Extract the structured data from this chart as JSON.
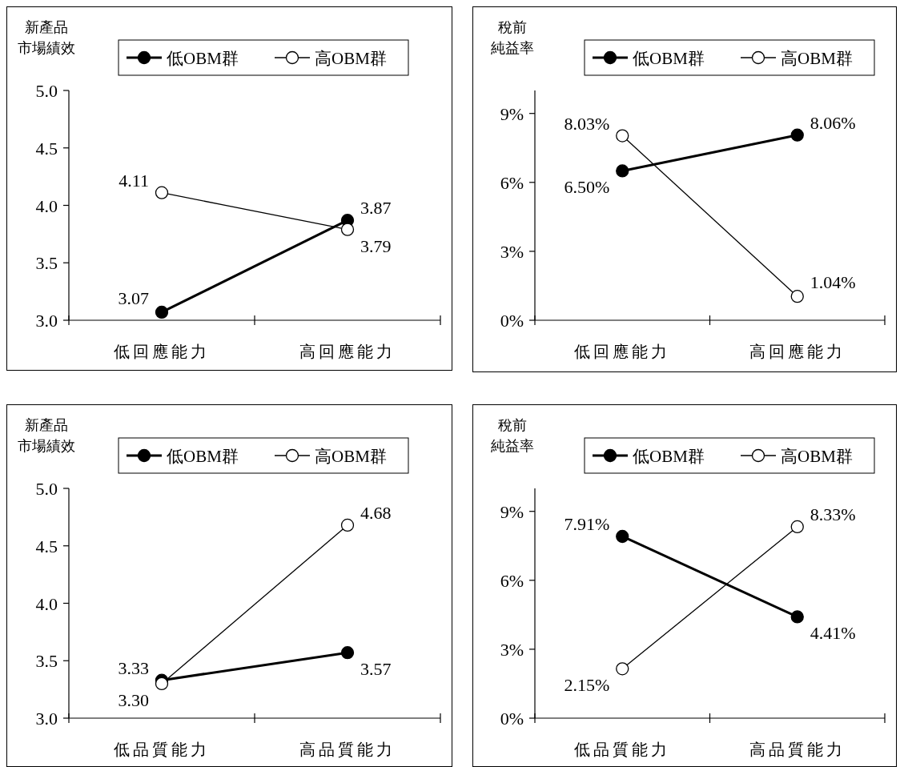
{
  "chart_data": [
    {
      "type": "line",
      "ylabel": "新產品市場績效",
      "categories": [
        "低回應能力",
        "高回應能力"
      ],
      "legend": "top",
      "marker": "circle",
      "data_labels": true,
      "ylim": [
        3,
        5
      ],
      "yticks": [
        {
          "value": 3,
          "label": "3.0"
        },
        {
          "value": 3.5,
          "label": "3.5"
        },
        {
          "value": 4,
          "label": "4.0"
        },
        {
          "value": 4.5,
          "label": "4.5"
        },
        {
          "value": 5,
          "label": "5.0"
        }
      ],
      "series": [
        {
          "name": "低OBM群",
          "color": "#000000",
          "values": [
            3.07,
            3.87
          ]
        },
        {
          "name": "高OBM群",
          "color": "#ffffff",
          "values": [
            4.11,
            3.79
          ]
        }
      ]
    },
    {
      "type": "line",
      "ylabel": "稅前純益率",
      "categories": [
        "低回應能力",
        "高回應能力"
      ],
      "legend": "top",
      "marker": "circle",
      "ylim": [
        0,
        10
      ],
      "yticks": [
        {
          "value": 0,
          "label": "0%"
        },
        {
          "value": 3,
          "label": "3%"
        },
        {
          "value": 6,
          "label": "6%"
        },
        {
          "value": 9,
          "label": "9%"
        }
      ],
      "series": [
        {
          "name": "低OBM群",
          "color": "#000000",
          "values": [
            6.5,
            8.06
          ],
          "value_labels": [
            "6.50%",
            "8.06%"
          ]
        },
        {
          "name": "高OBM群",
          "color": "#ffffff",
          "values": [
            8.03,
            1.04
          ],
          "value_labels": [
            "8.03%",
            "1.04%"
          ]
        }
      ]
    },
    {
      "type": "line",
      "ylabel": "新產品市場績效",
      "categories": [
        "低品質能力",
        "高品質能力"
      ],
      "legend": "top",
      "marker": "circle",
      "ylim": [
        3,
        5
      ],
      "yticks": [
        {
          "value": 3,
          "label": "3.0"
        },
        {
          "value": 3.5,
          "label": "3.5"
        },
        {
          "value": 4,
          "label": "4.0"
        },
        {
          "value": 4.5,
          "label": "4.5"
        },
        {
          "value": 5,
          "label": "5.0"
        }
      ],
      "series": [
        {
          "name": "低OBM群",
          "color": "#000000",
          "values": [
            3.33,
            3.57
          ],
          "value_labels": [
            "3.33",
            "3.57"
          ]
        },
        {
          "name": "高OBM群",
          "color": "#ffffff",
          "values": [
            3.3,
            4.68
          ],
          "value_labels": [
            "3.30",
            "4.68"
          ]
        }
      ]
    },
    {
      "type": "line",
      "ylabel": "稅前純益率",
      "categories": [
        "低品質能力",
        "高品質能力"
      ],
      "legend": "top",
      "marker": "circle",
      "ylim": [
        0,
        10
      ],
      "yticks": [
        {
          "value": 0,
          "label": "0%"
        },
        {
          "value": 3,
          "label": "3%"
        },
        {
          "value": 6,
          "label": "6%"
        },
        {
          "value": 9,
          "label": "9%"
        }
      ],
      "series": [
        {
          "name": "低OBM群",
          "color": "#000000",
          "values": [
            7.91,
            4.41
          ],
          "value_labels": [
            "7.91%",
            "4.41%"
          ]
        },
        {
          "name": "高OBM群",
          "color": "#ffffff",
          "values": [
            2.15,
            8.33
          ],
          "value_labels": [
            "2.15%",
            "8.33%"
          ]
        }
      ]
    }
  ]
}
